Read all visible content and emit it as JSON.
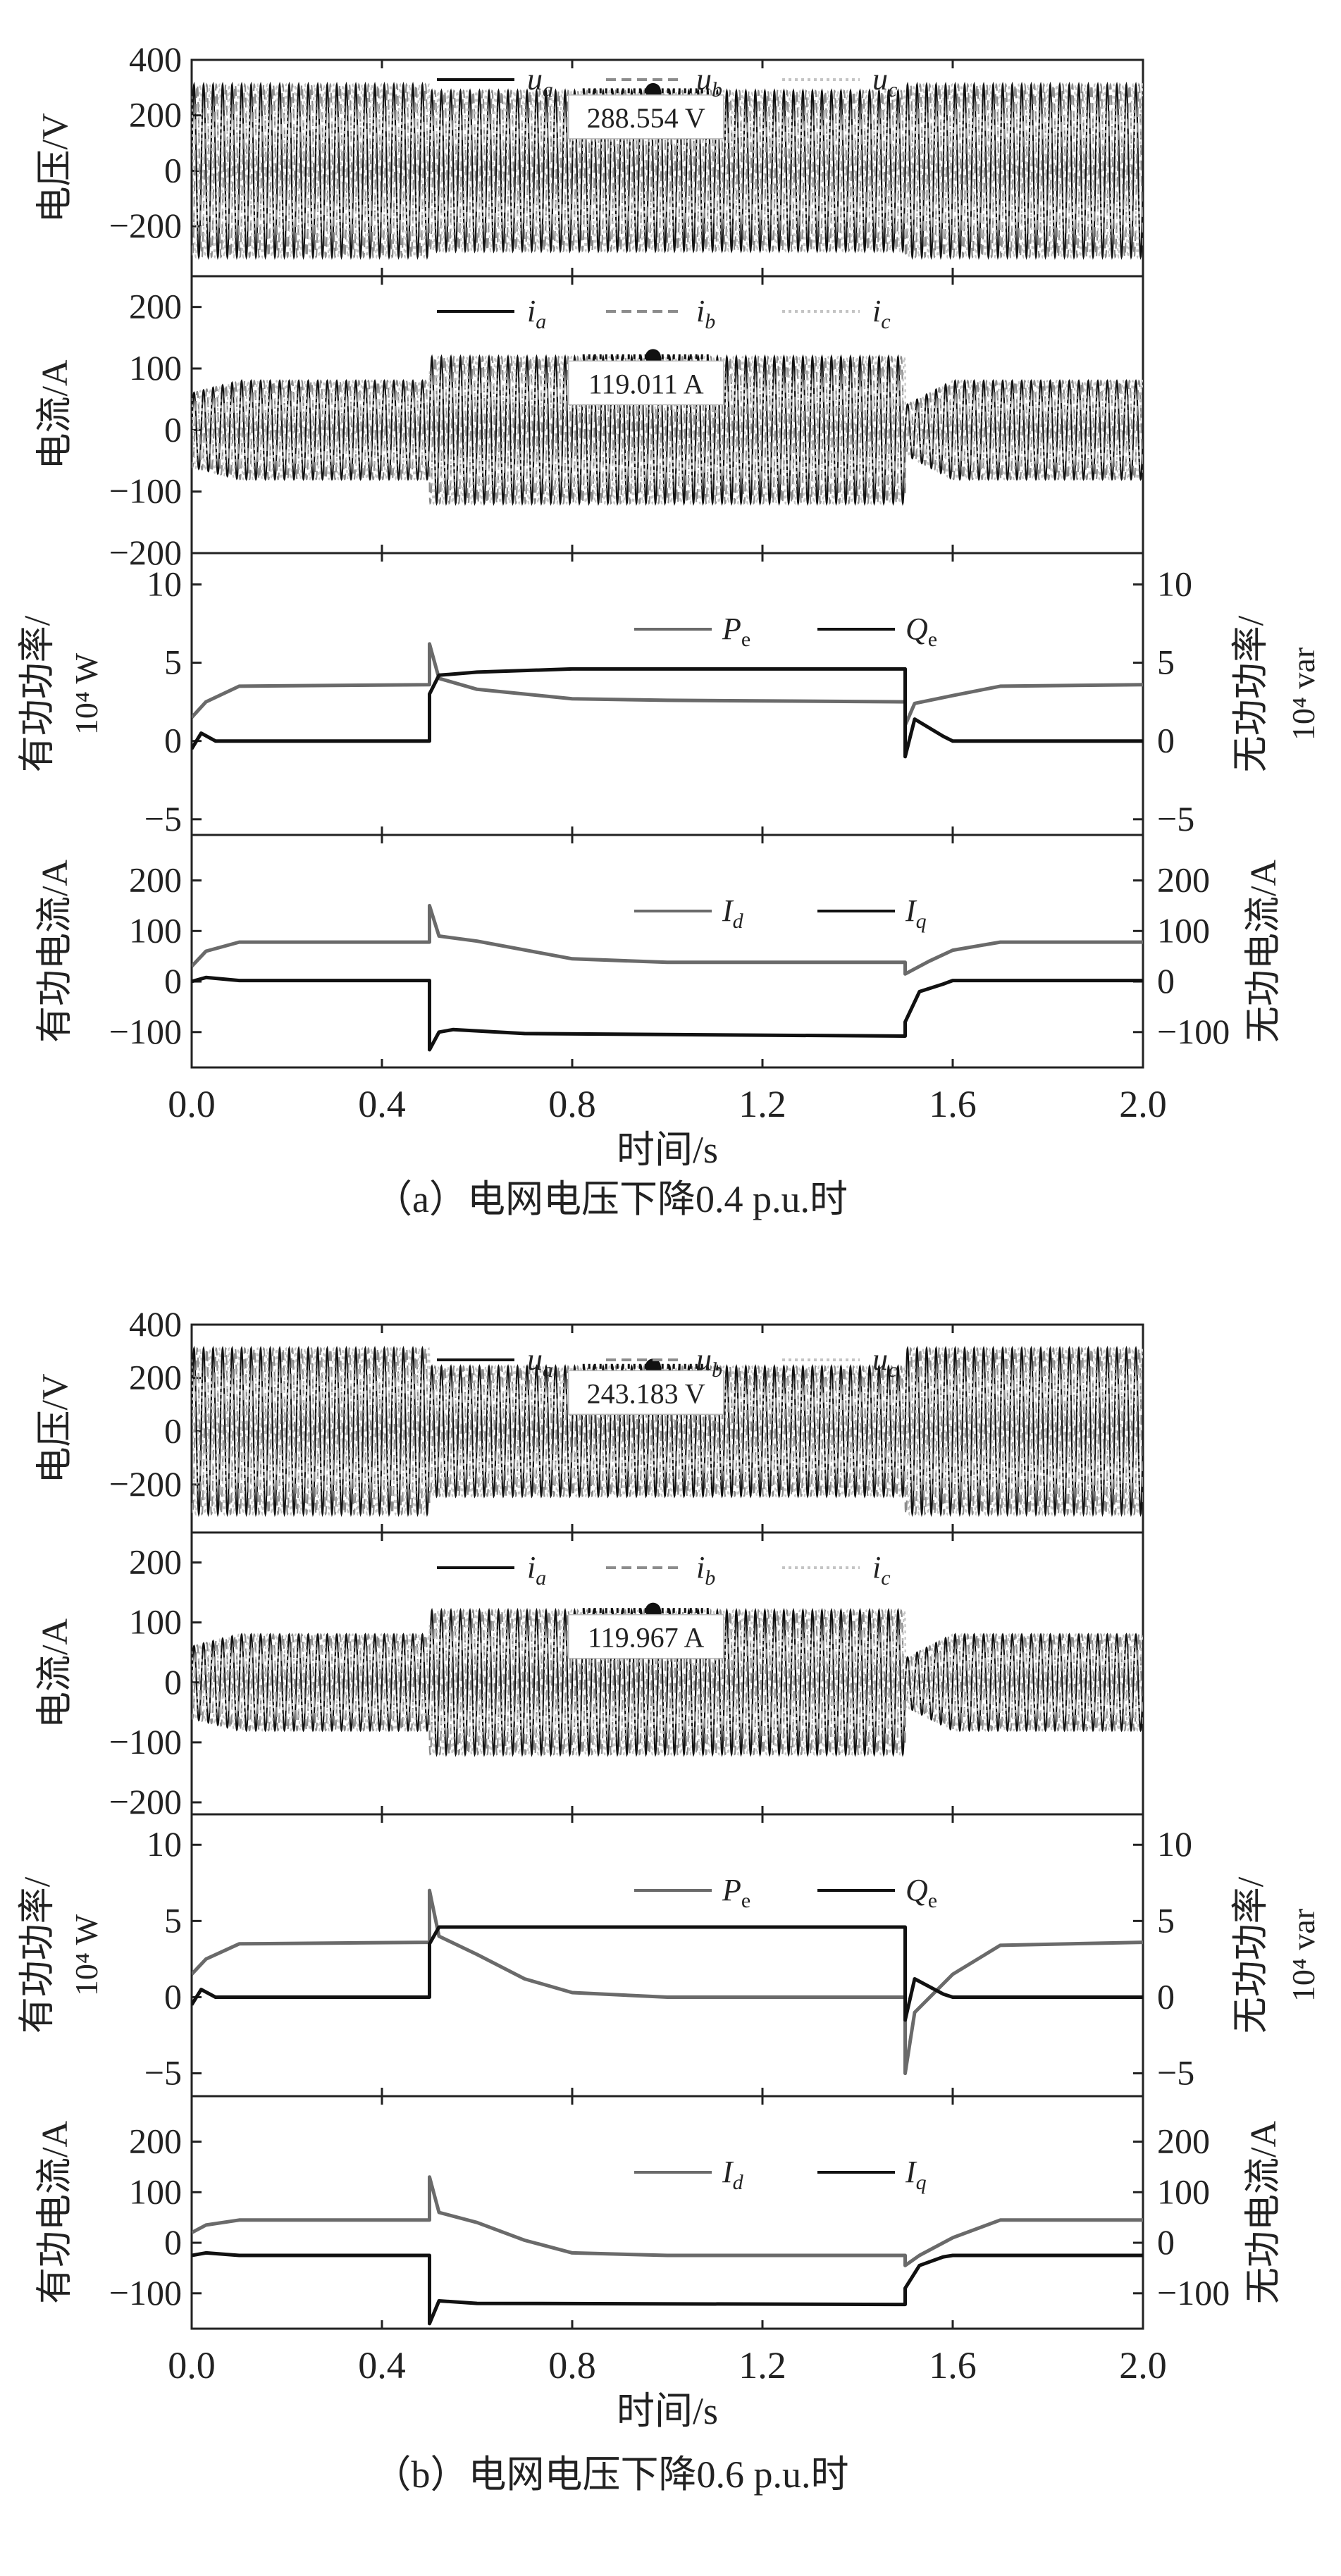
{
  "x_axis": {
    "ticks": [
      0.0,
      0.4,
      0.8,
      1.2,
      1.6,
      2.0
    ],
    "tick_labels": [
      "0.0",
      "0.4",
      "0.8",
      "1.2",
      "1.6",
      "2.0"
    ],
    "label": "时间/s"
  },
  "figures": [
    {
      "caption": "（a）电网电压下降0.4 p.u.时",
      "voltage_annotation": "288.554 V",
      "current_annotation": "119.011 A"
    },
    {
      "caption": "（b）电网电压下降0.6 p.u.时",
      "voltage_annotation": "243.183 V",
      "current_annotation": "119.967 A"
    }
  ],
  "colors": {
    "phase_a": "#111111",
    "phase_b": "#8c8c8c",
    "phase_c": "#c4c4c4",
    "real": "#6a6a6a",
    "reactive": "#111111",
    "axis": "#222222",
    "annotation": "#111111"
  },
  "chart_data": [
    {
      "type": "line",
      "figure": "a",
      "panel": "voltage",
      "ylabel": "电压/V",
      "ylim": [
        -380,
        400
      ],
      "yticks": [
        -200,
        0,
        200,
        400
      ],
      "ytick_labels": [
        "−200",
        "0",
        "200",
        "400"
      ],
      "legend": [
        "u_a",
        "u_b",
        "u_c"
      ],
      "legend_placement": "top",
      "frequency_hz": 50,
      "series": [
        {
          "name": "u_a",
          "phase_deg": 0,
          "envelope": {
            "t": [
              0,
              0.5,
              0.5,
              1.5,
              1.5,
              2.0
            ],
            "amplitude": [
              311,
              311,
              288.554,
              288.554,
              311,
              311
            ]
          }
        },
        {
          "name": "u_b",
          "phase_deg": -120,
          "envelope": {
            "t": [
              0,
              0.5,
              0.5,
              1.5,
              1.5,
              2.0
            ],
            "amplitude": [
              311,
              311,
              288.554,
              288.554,
              311,
              311
            ]
          }
        },
        {
          "name": "u_c",
          "phase_deg": 120,
          "envelope": {
            "t": [
              0,
              0.5,
              0.5,
              1.5,
              1.5,
              2.0
            ],
            "amplitude": [
              311,
              311,
              288.554,
              288.554,
              311,
              311
            ]
          }
        }
      ],
      "annotation": {
        "x": 0.97,
        "y": 288.554,
        "text": "288.554 V"
      }
    },
    {
      "type": "line",
      "figure": "a",
      "panel": "current",
      "ylabel": "电流/A",
      "ylim": [
        -200,
        250
      ],
      "yticks": [
        -200,
        -100,
        0,
        100,
        200
      ],
      "ytick_labels": [
        "−200",
        "−100",
        "0",
        "100",
        "200"
      ],
      "legend": [
        "i_a",
        "i_b",
        "i_c"
      ],
      "legend_placement": "top",
      "frequency_hz": 50,
      "series": [
        {
          "name": "i_a",
          "phase_deg": 0,
          "envelope": {
            "t": [
              0,
              0.1,
              0.5,
              0.5,
              1.5,
              1.5,
              1.6,
              2.0
            ],
            "amplitude": [
              60,
              80,
              80,
              119,
              119,
              40,
              80,
              80
            ]
          }
        },
        {
          "name": "i_b",
          "phase_deg": -120,
          "envelope": {
            "t": [
              0,
              0.1,
              0.5,
              0.5,
              1.5,
              1.5,
              1.6,
              2.0
            ],
            "amplitude": [
              60,
              80,
              80,
              119,
              119,
              40,
              80,
              80
            ]
          }
        },
        {
          "name": "i_c",
          "phase_deg": 120,
          "envelope": {
            "t": [
              0,
              0.1,
              0.5,
              0.5,
              1.5,
              1.5,
              1.6,
              2.0
            ],
            "amplitude": [
              60,
              80,
              80,
              119,
              119,
              40,
              80,
              80
            ]
          }
        }
      ],
      "annotation": {
        "x": 0.97,
        "y": 119.011,
        "text": "119.011 A"
      }
    },
    {
      "type": "line",
      "figure": "a",
      "panel": "power",
      "ylabel": "有功功率/",
      "ylabel_unit": "10⁴ W",
      "ylim": [
        -6,
        12
      ],
      "yticks": [
        -5,
        0,
        5,
        10
      ],
      "ytick_labels": [
        "−5",
        "0",
        "5",
        "10"
      ],
      "y2label": "无功功率/",
      "y2label_unit": "10⁴ var",
      "y2lim": [
        -6,
        12
      ],
      "y2ticks": [
        -5,
        0,
        5,
        10
      ],
      "y2tick_labels": [
        "−5",
        "0",
        "5",
        "10"
      ],
      "legend": [
        "P_e",
        "Q_e"
      ],
      "legend_placement": "top-center",
      "series": [
        {
          "name": "P_e",
          "x": [
            0,
            0.03,
            0.1,
            0.5,
            0.5,
            0.52,
            0.6,
            0.8,
            1.0,
            1.5,
            1.5,
            1.52,
            1.6,
            1.7,
            2.0
          ],
          "y": [
            1.5,
            2.5,
            3.5,
            3.6,
            6.2,
            4.0,
            3.3,
            2.7,
            2.6,
            2.5,
            1.0,
            2.4,
            2.9,
            3.5,
            3.6
          ]
        },
        {
          "name": "Q_e",
          "x": [
            0,
            0.02,
            0.05,
            0.5,
            0.5,
            0.52,
            0.6,
            0.8,
            1.5,
            1.5,
            1.52,
            1.58,
            1.6,
            2.0
          ],
          "y": [
            -0.5,
            0.5,
            0,
            0,
            3.0,
            4.2,
            4.4,
            4.6,
            4.6,
            -1.0,
            1.4,
            0.3,
            0,
            0
          ]
        }
      ]
    },
    {
      "type": "line",
      "figure": "a",
      "panel": "dq-current",
      "ylabel": "有功电流/A",
      "ylim": [
        -170,
        290
      ],
      "yticks": [
        -100,
        0,
        100,
        200
      ],
      "ytick_labels": [
        "−100",
        "0",
        "100",
        "200"
      ],
      "y2label": "无功电流/A",
      "y2lim": [
        -170,
        290
      ],
      "y2ticks": [
        -100,
        0,
        100,
        200
      ],
      "y2tick_labels": [
        "−100",
        "0",
        "100",
        "200"
      ],
      "legend": [
        "I_d",
        "I_q"
      ],
      "legend_placement": "top-center",
      "series": [
        {
          "name": "I_d",
          "x": [
            0,
            0.03,
            0.1,
            0.5,
            0.5,
            0.52,
            0.6,
            0.8,
            1.0,
            1.5,
            1.5,
            1.55,
            1.6,
            1.7,
            2.0
          ],
          "y": [
            30,
            60,
            78,
            78,
            150,
            90,
            80,
            45,
            38,
            38,
            15,
            40,
            62,
            78,
            78
          ]
        },
        {
          "name": "I_q",
          "x": [
            0,
            0.03,
            0.1,
            0.5,
            0.5,
            0.52,
            0.55,
            0.7,
            1.5,
            1.5,
            1.53,
            1.58,
            1.6,
            2.0
          ],
          "y": [
            0,
            8,
            2,
            2,
            -135,
            -100,
            -95,
            -103,
            -108,
            -80,
            -20,
            -5,
            2,
            2
          ]
        }
      ]
    },
    {
      "type": "line",
      "figure": "b",
      "panel": "voltage",
      "ylabel": "电压/V",
      "ylim": [
        -380,
        400
      ],
      "yticks": [
        -200,
        0,
        200,
        400
      ],
      "ytick_labels": [
        "−200",
        "0",
        "200",
        "400"
      ],
      "legend": [
        "u_a",
        "u_b",
        "u_c"
      ],
      "legend_placement": "top",
      "frequency_hz": 50,
      "series": [
        {
          "name": "u_a",
          "phase_deg": 0,
          "envelope": {
            "t": [
              0,
              0.5,
              0.5,
              1.5,
              1.5,
              2.0
            ],
            "amplitude": [
              311,
              311,
              243.183,
              243.183,
              311,
              311
            ]
          }
        },
        {
          "name": "u_b",
          "phase_deg": -120,
          "envelope": {
            "t": [
              0,
              0.5,
              0.5,
              1.5,
              1.5,
              2.0
            ],
            "amplitude": [
              311,
              311,
              243.183,
              243.183,
              311,
              311
            ]
          }
        },
        {
          "name": "u_c",
          "phase_deg": 120,
          "envelope": {
            "t": [
              0,
              0.5,
              0.5,
              1.5,
              1.5,
              2.0
            ],
            "amplitude": [
              311,
              311,
              243.183,
              243.183,
              311,
              311
            ]
          }
        }
      ],
      "annotation": {
        "x": 0.97,
        "y": 243.183,
        "text": "243.183 V"
      }
    },
    {
      "type": "line",
      "figure": "b",
      "panel": "current",
      "ylabel": "电流/A",
      "ylim": [
        -220,
        250
      ],
      "yticks": [
        -200,
        -100,
        0,
        100,
        200
      ],
      "ytick_labels": [
        "−200",
        "−100",
        "0",
        "100",
        "200"
      ],
      "legend": [
        "i_a",
        "i_b",
        "i_c"
      ],
      "legend_placement": "top",
      "frequency_hz": 50,
      "series": [
        {
          "name": "i_a",
          "phase_deg": 0,
          "envelope": {
            "t": [
              0,
              0.1,
              0.5,
              0.5,
              1.5,
              1.5,
              1.6,
              2.0
            ],
            "amplitude": [
              60,
              80,
              80,
              120,
              120,
              40,
              80,
              80
            ]
          }
        },
        {
          "name": "i_b",
          "phase_deg": -120,
          "envelope": {
            "t": [
              0,
              0.1,
              0.5,
              0.5,
              1.5,
              1.5,
              1.6,
              2.0
            ],
            "amplitude": [
              60,
              80,
              80,
              120,
              120,
              40,
              80,
              80
            ]
          }
        },
        {
          "name": "i_c",
          "phase_deg": 120,
          "envelope": {
            "t": [
              0,
              0.1,
              0.5,
              0.5,
              1.5,
              1.5,
              1.6,
              2.0
            ],
            "amplitude": [
              60,
              80,
              80,
              120,
              120,
              40,
              80,
              80
            ]
          }
        }
      ],
      "annotation": {
        "x": 0.97,
        "y": 119.967,
        "text": "119.967 A"
      }
    },
    {
      "type": "line",
      "figure": "b",
      "panel": "power",
      "ylabel": "有功功率/",
      "ylabel_unit": "10⁴ W",
      "ylim": [
        -6.5,
        12
      ],
      "yticks": [
        -5,
        0,
        5,
        10
      ],
      "ytick_labels": [
        "−5",
        "0",
        "5",
        "10"
      ],
      "y2label": "无功功率/",
      "y2label_unit": "10⁴ var",
      "y2lim": [
        -6.5,
        12
      ],
      "y2ticks": [
        -5,
        0,
        5,
        10
      ],
      "y2tick_labels": [
        "−5",
        "0",
        "5",
        "10"
      ],
      "legend": [
        "P_e",
        "Q_e"
      ],
      "legend_placement": "top-center",
      "series": [
        {
          "name": "P_e",
          "x": [
            0,
            0.03,
            0.1,
            0.5,
            0.5,
            0.52,
            0.6,
            0.7,
            0.8,
            1.0,
            1.5,
            1.5,
            1.52,
            1.6,
            1.7,
            2.0
          ],
          "y": [
            1.5,
            2.5,
            3.5,
            3.6,
            7.0,
            4.0,
            2.8,
            1.2,
            0.3,
            0,
            0,
            -5.0,
            -1.0,
            1.5,
            3.4,
            3.6
          ]
        },
        {
          "name": "Q_e",
          "x": [
            0,
            0.02,
            0.05,
            0.5,
            0.5,
            0.52,
            0.6,
            1.5,
            1.5,
            1.52,
            1.58,
            1.6,
            2.0
          ],
          "y": [
            -0.5,
            0.5,
            0,
            0,
            3.5,
            4.6,
            4.6,
            4.6,
            -1.5,
            1.2,
            0.2,
            0,
            0
          ]
        }
      ]
    },
    {
      "type": "line",
      "figure": "b",
      "panel": "dq-current",
      "ylabel": "有功电流/A",
      "ylim": [
        -170,
        290
      ],
      "yticks": [
        -100,
        0,
        100,
        200
      ],
      "ytick_labels": [
        "−100",
        "0",
        "100",
        "200"
      ],
      "y2label": "无功电流/A",
      "y2lim": [
        -170,
        290
      ],
      "y2ticks": [
        -100,
        0,
        100,
        200
      ],
      "y2tick_labels": [
        "−100",
        "0",
        "100",
        "200"
      ],
      "legend": [
        "I_d",
        "I_q"
      ],
      "legend_placement": "top-center",
      "series": [
        {
          "name": "I_d",
          "x": [
            0,
            0.03,
            0.1,
            0.5,
            0.5,
            0.52,
            0.6,
            0.7,
            0.8,
            1.0,
            1.5,
            1.5,
            1.53,
            1.6,
            1.7,
            2.0
          ],
          "y": [
            20,
            35,
            45,
            45,
            130,
            60,
            40,
            5,
            -20,
            -25,
            -25,
            -45,
            -25,
            10,
            45,
            45
          ]
        },
        {
          "name": "I_q",
          "x": [
            0,
            0.03,
            0.1,
            0.5,
            0.5,
            0.52,
            0.6,
            1.5,
            1.5,
            1.53,
            1.58,
            1.6,
            2.0
          ],
          "y": [
            -25,
            -20,
            -25,
            -25,
            -160,
            -115,
            -120,
            -122,
            -90,
            -45,
            -28,
            -25,
            -25
          ]
        }
      ]
    }
  ]
}
